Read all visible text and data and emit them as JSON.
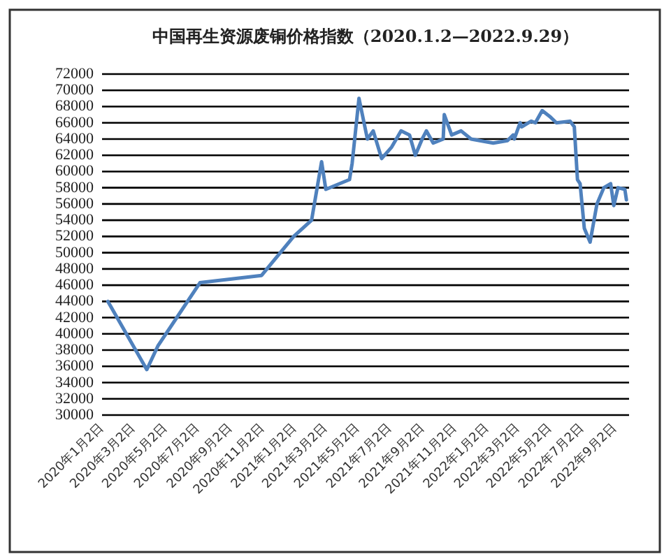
{
  "chart_data": {
    "type": "line",
    "title": "中国再生资源废铜价格指数（2020.1.2—2022.9.29）",
    "x": [
      "2020-01-13",
      "2020-03-27",
      "2020-04-17",
      "2020-07-06",
      "2020-10-31",
      "2020-12-31",
      "2021-02-03",
      "2021-02-22",
      "2021-03-02",
      "2021-04-16",
      "2021-04-21",
      "2021-05-04",
      "2021-05-20",
      "2021-05-31",
      "2021-06-16",
      "2021-07-05",
      "2021-07-23",
      "2021-08-08",
      "2021-08-19",
      "2021-09-01",
      "2021-09-09",
      "2021-09-22",
      "2021-10-11",
      "2021-10-13",
      "2021-10-27",
      "2021-11-14",
      "2021-12-03",
      "2022-01-14",
      "2022-02-10",
      "2022-02-21",
      "2022-02-23",
      "2022-03-06",
      "2022-03-09",
      "2022-03-27",
      "2022-04-04",
      "2022-04-17",
      "2022-05-01",
      "2022-05-14",
      "2022-06-09",
      "2022-06-17",
      "2022-06-23",
      "2022-06-28",
      "2022-07-06",
      "2022-07-17",
      "2022-07-30",
      "2022-08-12",
      "2022-08-25",
      "2022-08-31",
      "2022-09-08",
      "2022-09-21",
      "2022-09-24"
    ],
    "series": [
      {
        "color": "#4f81bd",
        "values": [
          44000,
          35600,
          38500,
          46300,
          47200,
          52000,
          54000,
          61200,
          57800,
          59000,
          61000,
          69000,
          64000,
          65000,
          61600,
          63000,
          65000,
          64500,
          62000,
          64000,
          65000,
          63500,
          64000,
          67000,
          64500,
          65000,
          64000,
          63500,
          63800,
          64500,
          64000,
          66000,
          65500,
          66200,
          66000,
          67500,
          66800,
          66000,
          66200,
          65500,
          59000,
          58500,
          53000,
          51300,
          56000,
          58000,
          58500,
          55800,
          58000,
          57800,
          56500
        ]
      }
    ],
    "xlim": [
      "2020-01-02",
      "2022-09-29"
    ],
    "xticks": [
      {
        "value": "2020-01-02",
        "label": "2020年1月2日"
      },
      {
        "value": "2020-03-02",
        "label": "2020年3月2日"
      },
      {
        "value": "2020-05-02",
        "label": "2020年5月2日"
      },
      {
        "value": "2020-07-02",
        "label": "2020年7月2日"
      },
      {
        "value": "2020-09-02",
        "label": "2020年9月2日"
      },
      {
        "value": "2020-11-02",
        "label": "2020年11月2日"
      },
      {
        "value": "2021-01-02",
        "label": "2021年1月2日"
      },
      {
        "value": "2021-03-02",
        "label": "2021年3月2日"
      },
      {
        "value": "2021-05-02",
        "label": "2021年5月2日"
      },
      {
        "value": "2021-07-02",
        "label": "2021年7月2日"
      },
      {
        "value": "2021-09-02",
        "label": "2021年9月2日"
      },
      {
        "value": "2021-11-02",
        "label": "2021年11月2日"
      },
      {
        "value": "2022-01-02",
        "label": "2022年1月2日"
      },
      {
        "value": "2022-03-02",
        "label": "2022年3月2日"
      },
      {
        "value": "2022-05-02",
        "label": "2022年5月2日"
      },
      {
        "value": "2022-07-02",
        "label": "2022年7月2日"
      },
      {
        "value": "2022-09-02",
        "label": "2022年9月2日"
      }
    ],
    "ylim": [
      30000,
      72000
    ],
    "yticks": [
      30000,
      32000,
      34000,
      36000,
      38000,
      40000,
      42000,
      44000,
      46000,
      48000,
      50000,
      52000,
      54000,
      56000,
      58000,
      60000,
      62000,
      64000,
      66000,
      68000,
      70000,
      72000
    ],
    "grid": "y",
    "marker": "none",
    "line_style": "solid"
  }
}
